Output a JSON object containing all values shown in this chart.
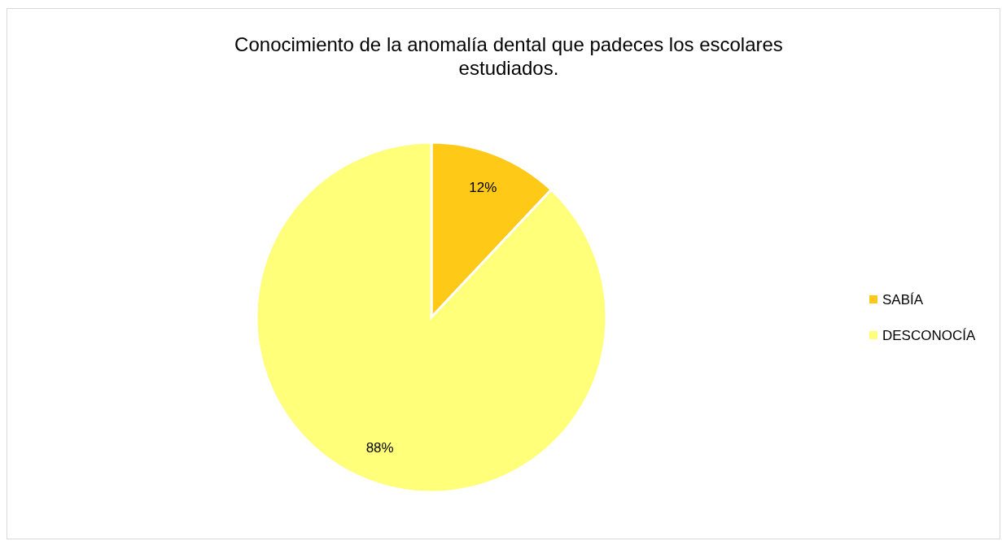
{
  "chart_data": {
    "type": "pie",
    "title": "Conocimiento de la anomalía dental que padeces los escolares estudiados.",
    "categories": [
      "SABÍA",
      "DESCONOCÍA"
    ],
    "values": [
      12,
      88
    ],
    "colors": [
      "#ffc917",
      "#ffff7a"
    ],
    "value_labels": [
      "12%",
      "88%"
    ],
    "legend": "right"
  }
}
